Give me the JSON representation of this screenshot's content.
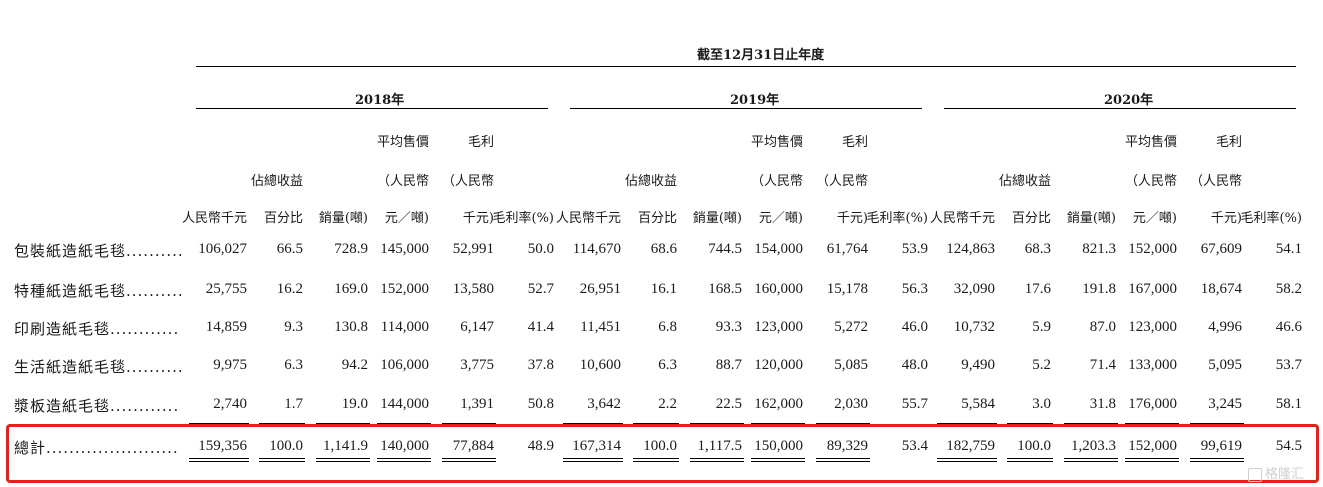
{
  "header": {
    "period": "截至12月31日止年度",
    "years": [
      "2018年",
      "2019年",
      "2020年"
    ],
    "col_lines": [
      [
        "",
        "",
        "",
        "平均售價",
        "毛利",
        ""
      ],
      [
        "",
        "佔總收益",
        "",
        "（人民幣",
        "（人民幣",
        ""
      ],
      [
        "人民幣千元",
        "百分比",
        "銷量(噸)",
        "元／噸)",
        "千元)",
        "毛利率(%)"
      ]
    ]
  },
  "rows": [
    {
      "label": "包裝紙造紙毛毯..........",
      "values": [
        "106,027",
        "66.5",
        "728.9",
        "145,000",
        "52,991",
        "50.0",
        "114,670",
        "68.6",
        "744.5",
        "154,000",
        "61,764",
        "53.9",
        "124,863",
        "68.3",
        "821.3",
        "152,000",
        "67,609",
        "54.1"
      ]
    },
    {
      "label": "特種紙造紙毛毯..........",
      "values": [
        "25,755",
        "16.2",
        "169.0",
        "152,000",
        "13,580",
        "52.7",
        "26,951",
        "16.1",
        "168.5",
        "160,000",
        "15,178",
        "56.3",
        "32,090",
        "17.6",
        "191.8",
        "167,000",
        "18,674",
        "58.2"
      ]
    },
    {
      "label": "印刷造紙毛毯............",
      "values": [
        "14,859",
        "9.3",
        "130.8",
        "114,000",
        "6,147",
        "41.4",
        "11,451",
        "6.8",
        "93.3",
        "123,000",
        "5,272",
        "46.0",
        "10,732",
        "5.9",
        "87.0",
        "123,000",
        "4,996",
        "46.6"
      ]
    },
    {
      "label": "生活紙造紙毛毯..........",
      "values": [
        "9,975",
        "6.3",
        "94.2",
        "106,000",
        "3,775",
        "37.8",
        "10,600",
        "6.3",
        "88.7",
        "120,000",
        "5,085",
        "48.0",
        "9,490",
        "5.2",
        "71.4",
        "133,000",
        "5,095",
        "53.7"
      ]
    },
    {
      "label": "漿板造紙毛毯............",
      "values": [
        "2,740",
        "1.7",
        "19.0",
        "144,000",
        "1,391",
        "50.8",
        "3,642",
        "2.2",
        "22.5",
        "162,000",
        "2,030",
        "55.7",
        "5,584",
        "3.0",
        "31.8",
        "176,000",
        "3,245",
        "58.1"
      ]
    }
  ],
  "total": {
    "label": "總計.......................",
    "values": [
      "159,356",
      "100.0",
      "1,141.9",
      "140,000",
      "77,884",
      "48.9",
      "167,314",
      "100.0",
      "1,117.5",
      "150,000",
      "89,329",
      "53.4",
      "182,759",
      "100.0",
      "1,203.3",
      "152,000",
      "99,619",
      "54.5"
    ]
  },
  "highlight_color": "#e0231b",
  "watermark": "格隆汇"
}
